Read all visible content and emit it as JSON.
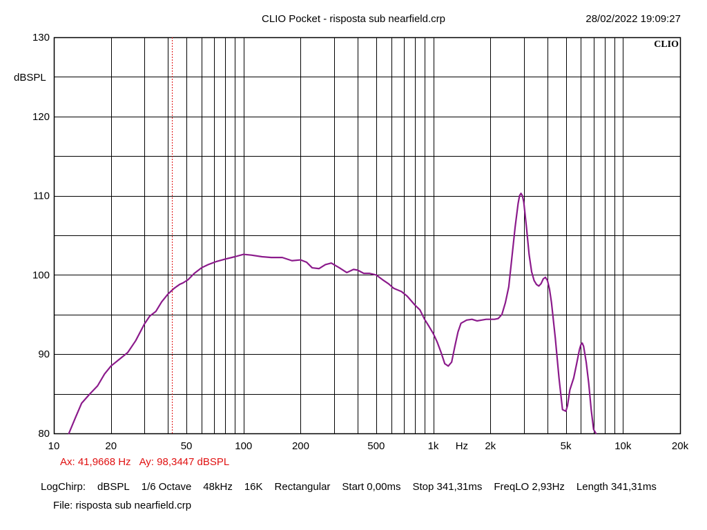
{
  "header": {
    "title": "CLIO Pocket - risposta sub nearfield.crp",
    "timestamp": "28/02/2022 19:09:27",
    "logo": "CLIO"
  },
  "cursor": {
    "ax_label": "Ax: 41,9668 Hz",
    "ay_label": "Ay: 98,3447 dBSPL",
    "x": 41.9668,
    "color": "#e01010"
  },
  "settings": {
    "items": [
      "LogChirp:",
      "dBSPL",
      "1/6 Octave",
      "48kHz",
      "16K",
      "Rectangular",
      "Start 0,00ms",
      "Stop 341,31ms",
      "FreqLO 2,93Hz",
      "Length 341,31ms"
    ]
  },
  "file": {
    "label": "File: risposta sub nearfield.crp"
  },
  "chart_data": {
    "type": "line",
    "title": "CLIO Pocket - risposta sub nearfield.crp",
    "xlabel": "Hz",
    "ylabel": "dBSPL",
    "xscale": "log",
    "xlim": [
      10,
      20000
    ],
    "ylim": [
      80,
      130
    ],
    "y_ticks": [
      80,
      90,
      100,
      110,
      120,
      130
    ],
    "x_ticks": [
      {
        "value": 10,
        "label": "10"
      },
      {
        "value": 20,
        "label": "20"
      },
      {
        "value": 50,
        "label": "50"
      },
      {
        "value": 100,
        "label": "100"
      },
      {
        "value": 200,
        "label": "200"
      },
      {
        "value": 500,
        "label": "500"
      },
      {
        "value": 1000,
        "label": "1k"
      },
      {
        "value": 2000,
        "label": "2k"
      },
      {
        "value": 5000,
        "label": "5k"
      },
      {
        "value": 10000,
        "label": "10k"
      },
      {
        "value": 20000,
        "label": "20k"
      }
    ],
    "grid": true,
    "line_color": "#8b1a8b",
    "series": [
      {
        "x": [
          12,
          13,
          14,
          15.5,
          17,
          18.5,
          20,
          22,
          24.5,
          27,
          30,
          32,
          34.5,
          37,
          40,
          43,
          46,
          48,
          51,
          55,
          60,
          65,
          72,
          80,
          90,
          100,
          110,
          125,
          140,
          160,
          180,
          200,
          215,
          230,
          250,
          270,
          290,
          320,
          350,
          380,
          400,
          430,
          460,
          500,
          540,
          580,
          620,
          680,
          730,
          800,
          850,
          900,
          950,
          1000,
          1050,
          1100,
          1150,
          1200,
          1250,
          1300,
          1350,
          1400,
          1500,
          1600,
          1700,
          1800,
          1900,
          2000,
          2100,
          2200,
          2300,
          2400,
          2500,
          2600,
          2700,
          2800,
          2850,
          2900,
          2950,
          3000,
          3100,
          3200,
          3300,
          3400,
          3500,
          3600,
          3700,
          3800,
          3900,
          4000,
          4100,
          4200,
          4400,
          4600,
          4800,
          5000,
          5100,
          5250,
          5500,
          5700,
          5900,
          6000,
          6100,
          6200,
          6400,
          6600,
          6800,
          7000,
          7200
        ],
        "y": [
          80,
          82,
          83.8,
          85,
          86,
          87.5,
          88.5,
          89.3,
          90.2,
          91.7,
          93.8,
          94.8,
          95.4,
          96.6,
          97.6,
          98.3,
          98.8,
          99,
          99.4,
          100.2,
          100.9,
          101.3,
          101.7,
          102,
          102.3,
          102.6,
          102.5,
          102.3,
          102.2,
          102.2,
          101.8,
          101.9,
          101.6,
          100.9,
          100.8,
          101.3,
          101.5,
          100.9,
          100.3,
          100.7,
          100.6,
          100.2,
          100.2,
          100,
          99.4,
          98.9,
          98.3,
          97.9,
          97.3,
          96.2,
          95.6,
          94.4,
          93.5,
          92.6,
          91.5,
          90.2,
          88.8,
          88.5,
          89,
          91,
          92.8,
          93.9,
          94.3,
          94.4,
          94.2,
          94.3,
          94.4,
          94.4,
          94.4,
          94.5,
          95,
          96.5,
          98.5,
          102.3,
          106,
          109,
          110,
          110.3,
          110,
          109.2,
          106,
          102.6,
          100.4,
          99.3,
          98.8,
          98.6,
          98.9,
          99.5,
          99.7,
          99.3,
          98.2,
          96.5,
          92,
          87,
          83,
          82.8,
          83.5,
          85.5,
          87,
          88.8,
          90.6,
          91.2,
          91.4,
          91,
          89,
          86.3,
          83,
          80.5,
          79.5
        ]
      }
    ]
  }
}
